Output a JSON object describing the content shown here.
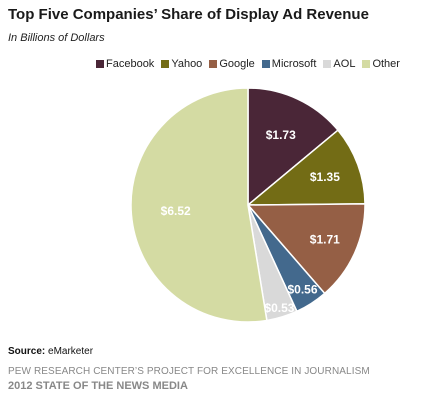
{
  "chart_data": {
    "type": "pie",
    "title": "Top Five Companies’ Share of Display Ad Revenue",
    "subtitle": "In Billions of Dollars",
    "legend_position": "top-right",
    "slices": [
      {
        "name": "Facebook",
        "value": 1.73,
        "label": "$1.73",
        "color": "#4a2637"
      },
      {
        "name": "Yahoo",
        "value": 1.35,
        "label": "$1.35",
        "color": "#736c15"
      },
      {
        "name": "Google",
        "value": 1.71,
        "label": "$1.71",
        "color": "#955f45"
      },
      {
        "name": "Microsoft",
        "value": 0.56,
        "label": "$0.56",
        "color": "#43698d"
      },
      {
        "name": "AOL",
        "value": 0.53,
        "label": "$0.53",
        "color": "#d9d9d9"
      },
      {
        "name": "Other",
        "value": 6.52,
        "label": "$6.52",
        "color": "#d4dba3"
      }
    ]
  },
  "source": {
    "label": "Source:",
    "text": "eMarketer"
  },
  "footer": {
    "line1": "PEW RESEARCH CENTER’S PROJECT FOR EXCELLENCE IN JOURNALISM",
    "line2": "2012 STATE OF THE NEWS MEDIA"
  }
}
